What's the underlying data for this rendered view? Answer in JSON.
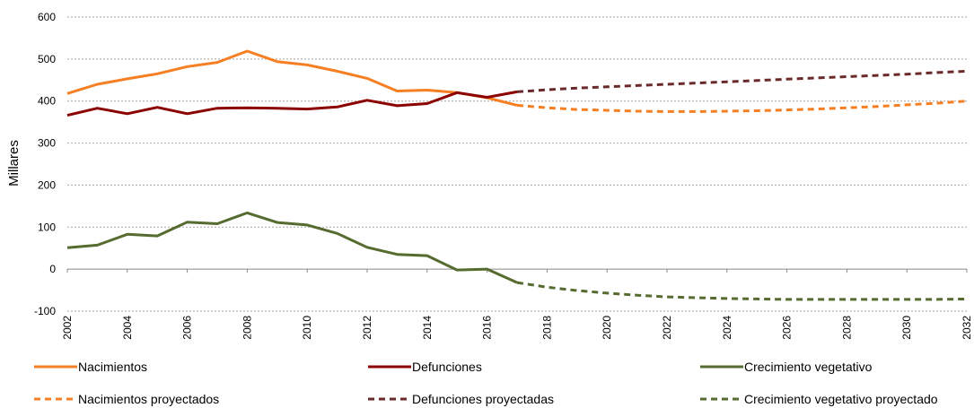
{
  "chart_data": {
    "type": "line",
    "ylabel": "Millares",
    "ylim": [
      -100,
      600
    ],
    "yticks": [
      -100,
      0,
      100,
      200,
      300,
      400,
      500,
      600
    ],
    "xlim": [
      2002,
      2032
    ],
    "xticks": [
      2002,
      2004,
      2006,
      2008,
      2010,
      2012,
      2014,
      2016,
      2018,
      2020,
      2022,
      2024,
      2026,
      2028,
      2030,
      2032
    ],
    "grid": "horizontal",
    "legend_position": "bottom",
    "series": [
      {
        "name": "Nacimientos",
        "color": "#f57f22",
        "dash": "solid",
        "x": [
          2002,
          2003,
          2004,
          2005,
          2006,
          2007,
          2008,
          2009,
          2010,
          2011,
          2012,
          2013,
          2014,
          2015,
          2016,
          2017
        ],
        "y": [
          418,
          440,
          453,
          465,
          482,
          492,
          519,
          494,
          486,
          471,
          454,
          424,
          426,
          420,
          408,
          390
        ]
      },
      {
        "name": "Defunciones",
        "color": "#8b0000",
        "dash": "solid",
        "x": [
          2002,
          2003,
          2004,
          2005,
          2006,
          2007,
          2008,
          2009,
          2010,
          2011,
          2012,
          2013,
          2014,
          2015,
          2016,
          2017
        ],
        "y": [
          366,
          383,
          370,
          385,
          370,
          383,
          384,
          383,
          381,
          386,
          402,
          389,
          394,
          420,
          409,
          422
        ]
      },
      {
        "name": "Crecimiento vegetativo",
        "color": "#556b2f",
        "dash": "solid",
        "x": [
          2002,
          2003,
          2004,
          2005,
          2006,
          2007,
          2008,
          2009,
          2010,
          2011,
          2012,
          2013,
          2014,
          2015,
          2016,
          2017
        ],
        "y": [
          51,
          57,
          83,
          79,
          112,
          108,
          134,
          111,
          105,
          85,
          52,
          35,
          32,
          -2,
          0,
          -32
        ]
      },
      {
        "name": "Nacimientos proyectados",
        "color": "#f57f22",
        "dash": "dashed",
        "x": [
          2017,
          2018,
          2019,
          2020,
          2021,
          2022,
          2023,
          2024,
          2025,
          2026,
          2027,
          2028,
          2029,
          2030,
          2031,
          2032
        ],
        "y": [
          390,
          384,
          380,
          378,
          376,
          375,
          375,
          376,
          377,
          379,
          381,
          384,
          387,
          391,
          395,
          400
        ]
      },
      {
        "name": "Defunciones proyectadas",
        "color": "#6b2a2a",
        "dash": "dashed",
        "x": [
          2017,
          2018,
          2019,
          2020,
          2021,
          2022,
          2023,
          2024,
          2025,
          2026,
          2027,
          2028,
          2029,
          2030,
          2031,
          2032
        ],
        "y": [
          422,
          427,
          431,
          434,
          437,
          440,
          443,
          446,
          449,
          452,
          455,
          458,
          461,
          464,
          468,
          471
        ]
      },
      {
        "name": "Crecimiento vegetativo proyectado",
        "color": "#556b2f",
        "dash": "dashed",
        "x": [
          2017,
          2018,
          2019,
          2020,
          2021,
          2022,
          2023,
          2024,
          2025,
          2026,
          2027,
          2028,
          2029,
          2030,
          2031,
          2032
        ],
        "y": [
          -32,
          -43,
          -51,
          -57,
          -62,
          -66,
          -68,
          -70,
          -71,
          -72,
          -72,
          -72,
          -72,
          -72,
          -72,
          -71
        ]
      }
    ]
  }
}
